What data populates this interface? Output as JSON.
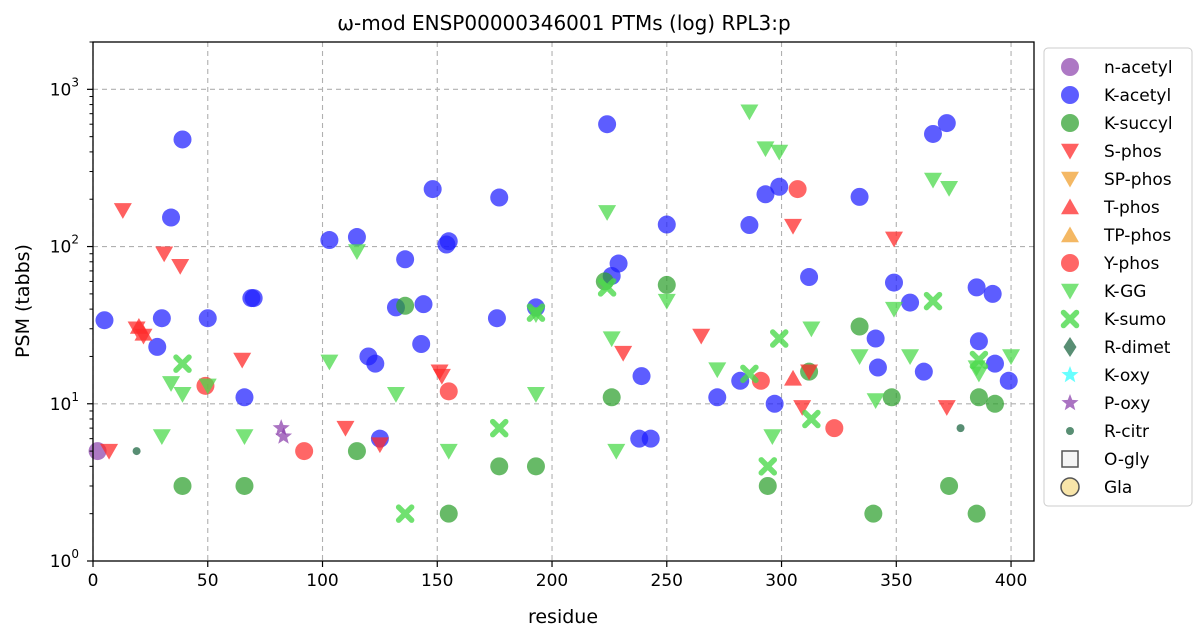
{
  "chart_data": {
    "type": "scatter",
    "title": "ω-mod ENSP00000346001 PTMs (log) RPL3:p",
    "xlabel": "residue",
    "ylabel": "PSM (tabbs)",
    "xlim": [
      0,
      410
    ],
    "ylim": [
      1,
      2000
    ],
    "yscale": "log",
    "grid": true,
    "legend_position": "right",
    "x_ticks": [
      0,
      50,
      100,
      150,
      200,
      250,
      300,
      350,
      400
    ],
    "series": [
      {
        "name": "n-acetyl",
        "marker": "circle",
        "color": "#8e44ad",
        "points": [
          [
            2,
            5
          ]
        ]
      },
      {
        "name": "K-acetyl",
        "marker": "circle",
        "color": "#1f1fff",
        "points": [
          [
            5,
            34
          ],
          [
            28,
            23
          ],
          [
            30,
            35
          ],
          [
            34,
            153
          ],
          [
            39,
            480
          ],
          [
            50,
            35
          ],
          [
            66,
            11
          ],
          [
            69,
            47
          ],
          [
            70,
            47
          ],
          [
            103,
            110
          ],
          [
            115,
            115
          ],
          [
            120,
            20
          ],
          [
            123,
            18
          ],
          [
            125,
            6
          ],
          [
            132,
            41
          ],
          [
            136,
            83
          ],
          [
            143,
            24
          ],
          [
            144,
            43
          ],
          [
            148,
            232
          ],
          [
            154,
            103
          ],
          [
            155,
            108
          ],
          [
            176,
            35
          ],
          [
            177,
            205
          ],
          [
            193,
            41
          ],
          [
            224,
            600
          ],
          [
            226,
            65
          ],
          [
            229,
            78
          ],
          [
            238,
            6
          ],
          [
            239,
            15
          ],
          [
            243,
            6
          ],
          [
            250,
            138
          ],
          [
            272,
            11
          ],
          [
            282,
            14
          ],
          [
            286,
            137
          ],
          [
            293,
            215
          ],
          [
            297,
            10
          ],
          [
            299,
            240
          ],
          [
            312,
            64
          ],
          [
            334,
            207
          ],
          [
            341,
            26
          ],
          [
            342,
            17
          ],
          [
            349,
            59
          ],
          [
            356,
            44
          ],
          [
            362,
            16
          ],
          [
            366,
            520
          ],
          [
            372,
            610
          ],
          [
            385,
            55
          ],
          [
            386,
            25
          ],
          [
            392,
            50
          ],
          [
            393,
            18
          ],
          [
            399,
            14
          ]
        ]
      },
      {
        "name": "K-succyl",
        "marker": "circle",
        "color": "#2ca02c",
        "points": [
          [
            39,
            3
          ],
          [
            66,
            3
          ],
          [
            115,
            5
          ],
          [
            136,
            42
          ],
          [
            155,
            2
          ],
          [
            177,
            4
          ],
          [
            193,
            4
          ],
          [
            223,
            60
          ],
          [
            226,
            11
          ],
          [
            250,
            57
          ],
          [
            294,
            3
          ],
          [
            312,
            16
          ],
          [
            334,
            31
          ],
          [
            340,
            2
          ],
          [
            348,
            11
          ],
          [
            373,
            3
          ],
          [
            385,
            2
          ],
          [
            386,
            11
          ],
          [
            393,
            10
          ]
        ]
      },
      {
        "name": "S-phos",
        "marker": "triangle-down",
        "color": "#ff2b2b",
        "points": [
          [
            7,
            5
          ],
          [
            13,
            170
          ],
          [
            19,
            30
          ],
          [
            22,
            27
          ],
          [
            31,
            90
          ],
          [
            38,
            75
          ],
          [
            65,
            19
          ],
          [
            110,
            7
          ],
          [
            125,
            5.5
          ],
          [
            151,
            16
          ],
          [
            152,
            15
          ],
          [
            231,
            21
          ],
          [
            265,
            27
          ],
          [
            305,
            135
          ],
          [
            309,
            9.5
          ],
          [
            312,
            16
          ],
          [
            349,
            112
          ],
          [
            372,
            9.5
          ]
        ]
      },
      {
        "name": "SP-phos",
        "marker": "triangle-down",
        "color": "#f0a030",
        "points": []
      },
      {
        "name": "T-phos",
        "marker": "triangle-up",
        "color": "#ff2b2b",
        "points": [
          [
            20,
            31
          ],
          [
            22,
            28
          ],
          [
            305,
            14.5
          ]
        ]
      },
      {
        "name": "TP-phos",
        "marker": "triangle-up",
        "color": "#f0a030",
        "points": []
      },
      {
        "name": "Y-phos",
        "marker": "circle",
        "color": "#ff2b2b",
        "points": [
          [
            49,
            13
          ],
          [
            92,
            5
          ],
          [
            155,
            12
          ],
          [
            291,
            14
          ],
          [
            307,
            232
          ],
          [
            323,
            7
          ]
        ]
      },
      {
        "name": "K-GG",
        "marker": "triangle-down",
        "color": "#4cd94c",
        "points": [
          [
            30,
            6.2
          ],
          [
            34,
            13.5
          ],
          [
            39,
            11.5
          ],
          [
            50,
            13
          ],
          [
            66,
            6.2
          ],
          [
            103,
            18.5
          ],
          [
            115,
            93
          ],
          [
            132,
            11.5
          ],
          [
            155,
            5
          ],
          [
            193,
            37
          ],
          [
            193,
            11.5
          ],
          [
            224,
            165
          ],
          [
            226,
            26
          ],
          [
            228,
            5
          ],
          [
            250,
            45
          ],
          [
            272,
            16.5
          ],
          [
            286,
            720
          ],
          [
            293,
            420
          ],
          [
            296,
            6.2
          ],
          [
            299,
            400
          ],
          [
            313,
            30
          ],
          [
            334,
            20
          ],
          [
            341,
            10.5
          ],
          [
            349,
            40
          ],
          [
            356,
            20
          ],
          [
            366,
            265
          ],
          [
            373,
            235
          ],
          [
            385,
            17
          ],
          [
            386,
            15.5
          ],
          [
            400,
            20
          ]
        ]
      },
      {
        "name": "K-sumo",
        "marker": "x",
        "color": "#4cd94c",
        "points": [
          [
            39,
            18
          ],
          [
            136,
            2
          ],
          [
            177,
            7
          ],
          [
            193,
            38
          ],
          [
            224,
            55
          ],
          [
            286,
            15.5
          ],
          [
            294,
            4
          ],
          [
            299,
            26
          ],
          [
            313,
            8
          ],
          [
            366,
            45
          ],
          [
            386,
            19
          ]
        ]
      },
      {
        "name": "R-dimet",
        "marker": "diamond",
        "color": "#3b7a5a",
        "points": []
      },
      {
        "name": "K-oxy",
        "marker": "star",
        "color": "#33ffff",
        "points": []
      },
      {
        "name": "P-oxy",
        "marker": "star",
        "color": "#8e44ad",
        "points": [
          [
            82,
            7
          ],
          [
            83,
            6.2
          ]
        ]
      },
      {
        "name": "R-citr",
        "marker": "small-circle",
        "color": "#3b7a5a",
        "points": [
          [
            19,
            5
          ],
          [
            378,
            7
          ]
        ]
      },
      {
        "name": "O-gly",
        "marker": "square-open",
        "color": "#555555",
        "points": []
      },
      {
        "name": "Gla",
        "marker": "circle-open",
        "color": "#f5dc8c",
        "points": []
      }
    ]
  }
}
